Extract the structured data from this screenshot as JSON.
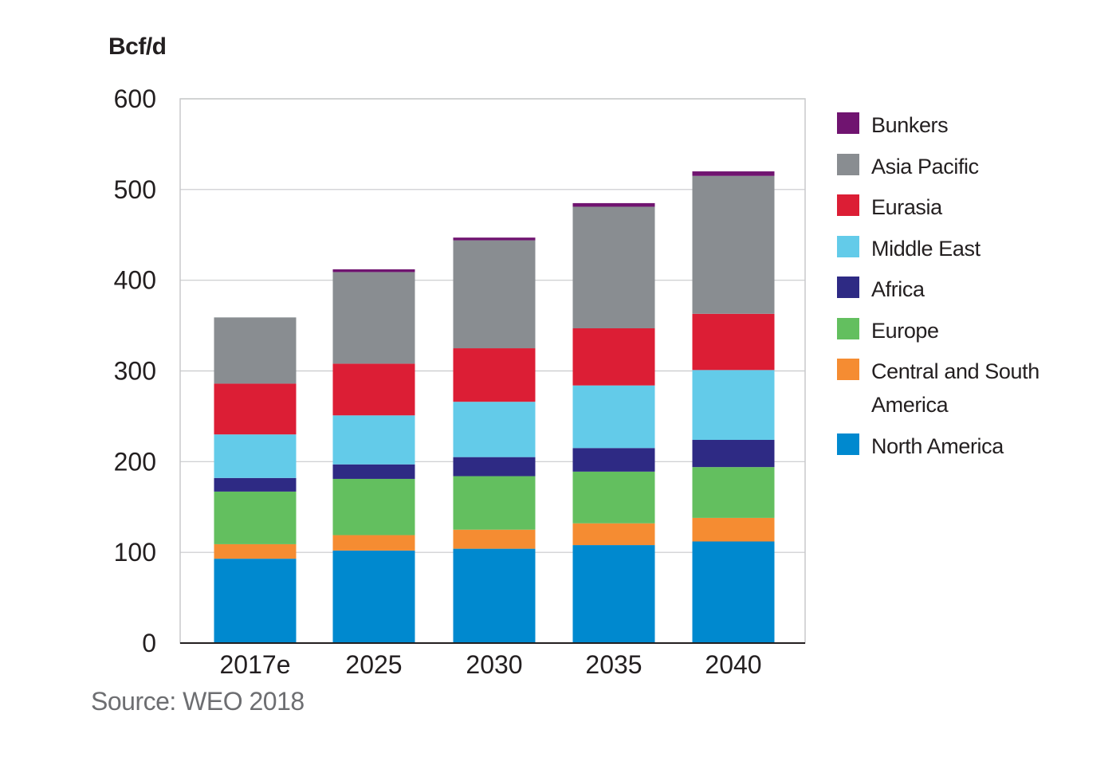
{
  "ylabel_text": "Bcf/d",
  "source_text": "Source: WEO 2018",
  "chart_data": {
    "type": "bar",
    "stacked": true,
    "title": "",
    "ylabel": "Bcf/d",
    "xlabel": "",
    "ylim": [
      0,
      600
    ],
    "yticks": [
      0,
      100,
      200,
      300,
      400,
      500,
      600
    ],
    "categories": [
      "2017e",
      "2025",
      "2030",
      "2035",
      "2040"
    ],
    "grid": true,
    "legend_position": "right",
    "series": [
      {
        "name": "North America",
        "color": "#0089cf",
        "values": [
          93,
          102,
          104,
          108,
          112
        ]
      },
      {
        "name": "Central and South America",
        "color": "#f58c32",
        "values": [
          16,
          17,
          21,
          24,
          26
        ]
      },
      {
        "name": "Europe",
        "color": "#63bf5f",
        "values": [
          58,
          62,
          59,
          57,
          56
        ]
      },
      {
        "name": "Africa",
        "color": "#2e2a84",
        "values": [
          15,
          16,
          21,
          26,
          30
        ]
      },
      {
        "name": "Middle East",
        "color": "#63cbe9",
        "values": [
          48,
          54,
          61,
          69,
          77
        ]
      },
      {
        "name": "Eurasia",
        "color": "#dc1e35",
        "values": [
          56,
          57,
          59,
          63,
          62
        ]
      },
      {
        "name": "Asia Pacific",
        "color": "#898d91",
        "values": [
          73,
          101,
          119,
          134,
          152
        ]
      },
      {
        "name": "Bunkers",
        "color": "#701470",
        "values": [
          0,
          3,
          3,
          4,
          5
        ]
      }
    ]
  },
  "legend": [
    {
      "label": "Bunkers",
      "color": "#701470"
    },
    {
      "label": "Asia Pacific",
      "color": "#898d91"
    },
    {
      "label": "Eurasia",
      "color": "#dc1e35"
    },
    {
      "label": "Middle East",
      "color": "#63cbe9"
    },
    {
      "label": "Africa",
      "color": "#2e2a84"
    },
    {
      "label": "Europe",
      "color": "#63bf5f"
    },
    {
      "label": "Central and South America",
      "color": "#f58c32"
    },
    {
      "label": "North America",
      "color": "#0089cf"
    }
  ]
}
